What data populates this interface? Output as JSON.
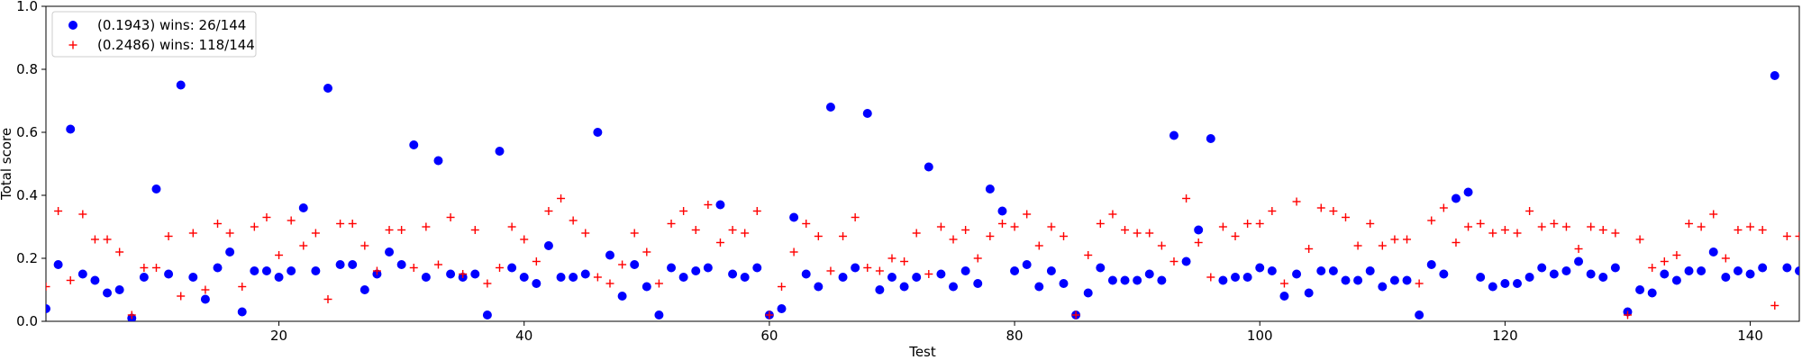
{
  "chart_data": {
    "type": "scatter",
    "title": "",
    "xlabel": "Test",
    "ylabel": "Total score",
    "xlim": [
      1,
      144
    ],
    "ylim": [
      0,
      1.0
    ],
    "xticks": [
      20,
      40,
      60,
      80,
      100,
      120,
      140
    ],
    "yticks": [
      0.0,
      0.2,
      0.4,
      0.6,
      0.8,
      1.0
    ],
    "xtick_labels": [
      "20",
      "40",
      "60",
      "80",
      "100",
      "120",
      "140"
    ],
    "ytick_labels": [
      "0.0",
      "0.2",
      "0.4",
      "0.6",
      "0.8",
      "1.0"
    ],
    "grid": false,
    "legend_position": "top-left",
    "series": [
      {
        "name": "(0.1943) wins: 26/144",
        "marker": "circle",
        "color": "#0000ff",
        "x": [
          1,
          2,
          3,
          4,
          5,
          6,
          7,
          8,
          9,
          10,
          11,
          12,
          13,
          14,
          15,
          16,
          17,
          18,
          19,
          20,
          21,
          22,
          23,
          24,
          25,
          26,
          27,
          28,
          29,
          30,
          31,
          32,
          33,
          34,
          35,
          36,
          37,
          38,
          39,
          40,
          41,
          42,
          43,
          44,
          45,
          46,
          47,
          48,
          49,
          50,
          51,
          52,
          53,
          54,
          55,
          56,
          57,
          58,
          59,
          60,
          61,
          62,
          63,
          64,
          65,
          66,
          67,
          68,
          69,
          70,
          71,
          72,
          73,
          74,
          75,
          76,
          77,
          78,
          79,
          80,
          81,
          82,
          83,
          84,
          85,
          86,
          87,
          88,
          89,
          90,
          91,
          92,
          93,
          94,
          95,
          96,
          97,
          98,
          99,
          100,
          101,
          102,
          103,
          104,
          105,
          106,
          107,
          108,
          109,
          110,
          111,
          112,
          113,
          114,
          115,
          116,
          117,
          118,
          119,
          120,
          121,
          122,
          123,
          124,
          125,
          126,
          127,
          128,
          129,
          130,
          131,
          132,
          133,
          134,
          135,
          136,
          137,
          138,
          139,
          140,
          141,
          142,
          143,
          144
        ],
        "y": [
          0.04,
          0.18,
          0.61,
          0.15,
          0.13,
          0.09,
          0.1,
          0.01,
          0.14,
          0.42,
          0.15,
          0.75,
          0.14,
          0.07,
          0.17,
          0.22,
          0.03,
          0.16,
          0.16,
          0.14,
          0.16,
          0.36,
          0.16,
          0.74,
          0.18,
          0.18,
          0.1,
          0.15,
          0.22,
          0.18,
          0.56,
          0.14,
          0.51,
          0.15,
          0.14,
          0.15,
          0.02,
          0.54,
          0.17,
          0.14,
          0.12,
          0.24,
          0.14,
          0.14,
          0.15,
          0.6,
          0.21,
          0.08,
          0.18,
          0.11,
          0.02,
          0.17,
          0.14,
          0.16,
          0.17,
          0.37,
          0.15,
          0.14,
          0.17,
          0.02,
          0.04,
          0.33,
          0.15,
          0.11,
          0.68,
          0.14,
          0.17,
          0.66,
          0.1,
          0.14,
          0.11,
          0.14,
          0.49,
          0.15,
          0.11,
          0.16,
          0.12,
          0.42,
          0.35,
          0.16,
          0.18,
          0.11,
          0.16,
          0.12,
          0.02,
          0.09,
          0.17,
          0.13,
          0.13,
          0.13,
          0.15,
          0.13,
          0.59,
          0.19,
          0.29,
          0.58,
          0.13,
          0.14,
          0.14,
          0.17,
          0.16,
          0.08,
          0.15,
          0.09,
          0.16,
          0.16,
          0.13,
          0.13,
          0.16,
          0.11,
          0.13,
          0.13,
          0.02,
          0.18,
          0.15,
          0.39,
          0.41,
          0.14,
          0.11,
          0.12,
          0.12,
          0.14,
          0.17,
          0.15,
          0.16,
          0.19,
          0.15,
          0.14,
          0.17,
          0.03,
          0.1,
          0.09,
          0.15,
          0.13,
          0.16,
          0.16,
          0.22,
          0.14,
          0.16,
          0.15,
          0.17,
          0.78,
          0.17,
          0.16
        ]
      },
      {
        "name": "(0.2486) wins: 118/144",
        "marker": "plus",
        "color": "#ff0000",
        "x": [
          1,
          2,
          3,
          4,
          5,
          6,
          7,
          8,
          9,
          10,
          11,
          12,
          13,
          14,
          15,
          16,
          17,
          18,
          19,
          20,
          21,
          22,
          23,
          24,
          25,
          26,
          27,
          28,
          29,
          30,
          31,
          32,
          33,
          34,
          35,
          36,
          37,
          38,
          39,
          40,
          41,
          42,
          43,
          44,
          45,
          46,
          47,
          48,
          49,
          50,
          51,
          52,
          53,
          54,
          55,
          56,
          57,
          58,
          59,
          60,
          61,
          62,
          63,
          64,
          65,
          66,
          67,
          68,
          69,
          70,
          71,
          72,
          73,
          74,
          75,
          76,
          77,
          78,
          79,
          80,
          81,
          82,
          83,
          84,
          85,
          86,
          87,
          88,
          89,
          90,
          91,
          92,
          93,
          94,
          95,
          96,
          97,
          98,
          99,
          100,
          101,
          102,
          103,
          104,
          105,
          106,
          107,
          108,
          109,
          110,
          111,
          112,
          113,
          114,
          115,
          116,
          117,
          118,
          119,
          120,
          121,
          122,
          123,
          124,
          125,
          126,
          127,
          128,
          129,
          130,
          131,
          132,
          133,
          134,
          135,
          136,
          137,
          138,
          139,
          140,
          141,
          142,
          143,
          144
        ],
        "y": [
          0.11,
          0.35,
          0.13,
          0.34,
          0.26,
          0.26,
          0.22,
          0.02,
          0.17,
          0.17,
          0.27,
          0.08,
          0.28,
          0.1,
          0.31,
          0.28,
          0.11,
          0.3,
          0.33,
          0.21,
          0.32,
          0.24,
          0.28,
          0.07,
          0.31,
          0.31,
          0.24,
          0.16,
          0.29,
          0.29,
          0.17,
          0.3,
          0.18,
          0.33,
          0.15,
          0.29,
          0.12,
          0.17,
          0.3,
          0.26,
          0.19,
          0.35,
          0.39,
          0.32,
          0.28,
          0.14,
          0.12,
          0.18,
          0.28,
          0.22,
          0.12,
          0.31,
          0.35,
          0.29,
          0.37,
          0.25,
          0.29,
          0.28,
          0.35,
          0.02,
          0.11,
          0.22,
          0.31,
          0.27,
          0.16,
          0.27,
          0.33,
          0.17,
          0.16,
          0.2,
          0.19,
          0.28,
          0.15,
          0.3,
          0.26,
          0.29,
          0.2,
          0.27,
          0.31,
          0.3,
          0.34,
          0.24,
          0.3,
          0.27,
          0.02,
          0.21,
          0.31,
          0.34,
          0.29,
          0.28,
          0.28,
          0.24,
          0.19,
          0.39,
          0.25,
          0.14,
          0.3,
          0.27,
          0.31,
          0.31,
          0.35,
          0.12,
          0.38,
          0.23,
          0.36,
          0.35,
          0.33,
          0.24,
          0.31,
          0.24,
          0.26,
          0.26,
          0.12,
          0.32,
          0.36,
          0.25,
          0.3,
          0.31,
          0.28,
          0.29,
          0.28,
          0.35,
          0.3,
          0.31,
          0.3,
          0.23,
          0.3,
          0.29,
          0.28,
          0.02,
          0.26,
          0.17,
          0.19,
          0.21,
          0.31,
          0.3,
          0.34,
          0.2,
          0.29,
          0.3,
          0.29,
          0.05,
          0.27,
          0.27
        ]
      }
    ]
  }
}
